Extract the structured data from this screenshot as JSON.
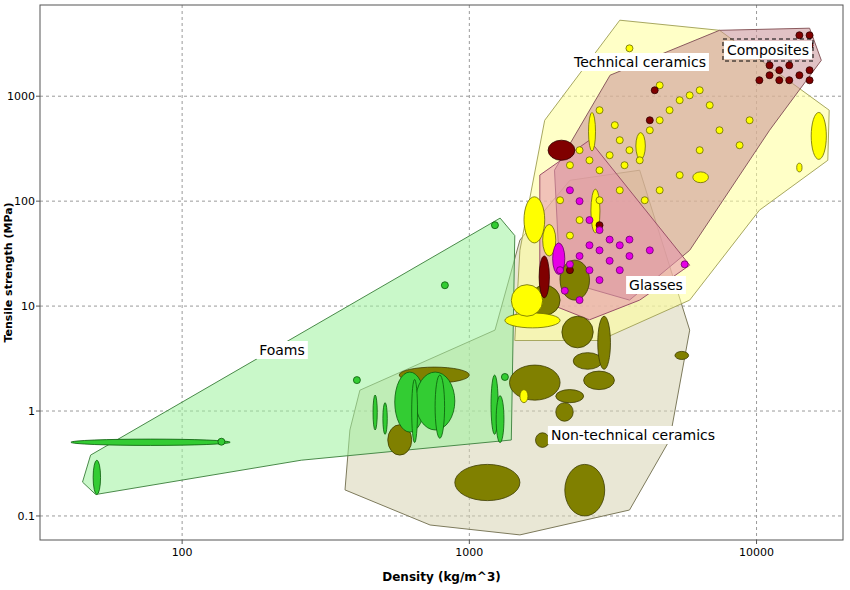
{
  "chart_data": {
    "type": "scatter",
    "x_label": "Density (kg/m^3)",
    "y_label": "Tensile strength (MPa)",
    "log": true,
    "grid": true,
    "xlim": [
      32,
      20000
    ],
    "ylim": [
      0.059,
      7400
    ],
    "xticks": [
      100,
      1000,
      10000
    ],
    "yticks": [
      0.1,
      1,
      10,
      100,
      1000
    ],
    "series": [
      {
        "name": "Non-technical ceramics",
        "color": "#808000",
        "envelope_x": [
          384,
          416,
          1228,
          1500,
          2240,
          3920,
          4790,
          5850,
          4980,
          3610,
          1500,
          730,
          369
        ],
        "envelope_y": [
          0.66,
          1.58,
          5.9,
          42.5,
          158,
          197,
          34,
          5.9,
          0.53,
          0.114,
          0.066,
          0.082,
          0.177
        ],
        "ellipses": [
          [
            520,
            630,
            0.38,
            0.74
          ],
          [
            570,
            1000,
            1.85,
            2.62
          ],
          [
            890,
            1500,
            0.14,
            0.31
          ],
          [
            2150,
            2960,
            0.1,
            0.31
          ],
          [
            1380,
            2070,
            1.27,
            2.74
          ],
          [
            1620,
            2070,
            8.2,
            15.8
          ],
          [
            2070,
            2620,
            11.4,
            27.4
          ],
          [
            2100,
            2700,
            4,
            8
          ],
          [
            2500,
            3200,
            1.6,
            2.4
          ],
          [
            2300,
            2900,
            2.5,
            3.6
          ],
          [
            2000,
            2500,
            1.2,
            1.6
          ],
          [
            2800,
            3100,
            2.5,
            8
          ],
          [
            5200,
            5800,
            3.1,
            3.7
          ],
          [
            1700,
            1900,
            0.45,
            0.62
          ],
          [
            2000,
            2300,
            0.8,
            1.2
          ]
        ]
      },
      {
        "name": "Foams",
        "color": "#33cc33",
        "envelope_x": [
          1280,
          1440,
          1400,
          260,
          50,
          45,
          48
        ],
        "envelope_y": [
          69,
          47,
          0.53,
          0.34,
          0.16,
          0.21,
          0.38
        ],
        "ellipses": [
          [
            49,
            52,
            0.16,
            0.34
          ],
          [
            41,
            147,
            0.47,
            0.54
          ],
          [
            462,
            478,
            0.66,
            1.42
          ],
          [
            500,
            518,
            0.6,
            1.2
          ],
          [
            550,
            700,
            0.63,
            2.35
          ],
          [
            650,
            890,
            0.66,
            2.35
          ],
          [
            630,
            660,
            0.5,
            2.0
          ],
          [
            760,
            820,
            0.55,
            2.2
          ],
          [
            1190,
            1260,
            0.6,
            2.2
          ],
          [
            1240,
            1320,
            0.5,
            1.4
          ]
        ],
        "x": [
          1228,
          822,
          406,
          1330,
          137
        ],
        "values": [
          59,
          15.8,
          1.97,
          2.11,
          0.51
        ]
      },
      {
        "name": "Technical ceramics",
        "color": "#ffff00",
        "envelope_x": [
          1440,
          1500,
          1830,
          3340,
          7430,
          17900,
          17700,
          10230,
          5850,
          2840
        ],
        "envelope_y": [
          4.7,
          34,
          590,
          5300,
          4250,
          736,
          245,
          82,
          11.4,
          4.7
        ],
        "ellipses": [
          [
            1330,
            2070,
            6.2,
            8.6
          ],
          [
            1400,
            1800,
            8,
            16
          ],
          [
            1550,
            1830,
            40,
            110
          ],
          [
            1800,
            2000,
            30,
            60
          ],
          [
            2650,
            2850,
            50,
            130
          ],
          [
            2600,
            2750,
            300,
            700
          ],
          [
            3800,
            4100,
            250,
            450
          ],
          [
            6000,
            6800,
            150,
            190
          ],
          [
            15500,
            17500,
            250,
            700
          ],
          [
            13800,
            14400,
            190,
            230
          ],
          [
            1500,
            1600,
            1.2,
            1.6
          ]
        ],
        "x": [
          2070,
          2240,
          2420,
          2620,
          2840,
          3080,
          3340,
          3610,
          3920,
          4250,
          4600,
          4980,
          5400,
          5850,
          6340,
          6870,
          7430,
          2840,
          3210,
          3470,
          4080,
          4600,
          5400,
          6340,
          8730,
          2240,
          2420,
          2840,
          3340,
          3610,
          4600,
          9460
        ],
        "values": [
          102,
          220,
          306,
          245,
          197,
          274,
          381,
          306,
          245,
          474,
          590,
          736,
          916,
          1020,
          1140,
          821,
          474,
          736,
          530,
          220,
          102,
          127,
          177,
          306,
          341,
          47,
          66,
          102,
          127,
          2860,
          1270,
          590
        ]
      },
      {
        "name": "Composites",
        "color": "#800000",
        "envelope_x": [
          2070,
          1980,
          3090,
          7430,
          15300,
          16800,
          11100,
          5850,
          3610
        ],
        "envelope_y": [
          17.7,
          197,
          1585,
          4250,
          4450,
          2200,
          474,
          34,
          11.4
        ],
        "ellipses": [
          [
            1880,
            2330,
            245,
            381
          ],
          [
            1750,
            1900,
            12,
            30
          ]
        ],
        "x": [
          10230,
          11100,
          12000,
          13000,
          14100,
          15300,
          14100,
          15300,
          13000,
          15300,
          14100,
          12000,
          11100,
          15300,
          4420,
          4250,
          2840,
          2240
        ],
        "values": [
          1420,
          1585,
          1770,
          1970,
          1585,
          1770,
          2460,
          3060,
          1420,
          3810,
          3810,
          1420,
          1970,
          1420,
          1140,
          590,
          59,
          22
        ]
      },
      {
        "name": "Glasses",
        "color": "#e600e6",
        "envelope_x": [
          1760,
          2620,
          5850,
          3920,
          2620,
          1760
        ],
        "envelope_y": [
          177,
          381,
          24.5,
          11.4,
          7.4,
          11.4
        ],
        "ellipses": [
          [
            1950,
            2150,
            20,
            40
          ]
        ],
        "x": [
          2240,
          2420,
          2620,
          2840,
          3080,
          2620,
          2840,
          3340,
          3080,
          3610,
          2420,
          2240,
          2070,
          2620,
          2840,
          3340,
          3610,
          4250,
          5620,
          2420,
          2150
        ],
        "values": [
          127,
          100,
          66,
          53,
          43,
          38,
          34,
          38,
          27,
          30,
          30,
          25,
          22,
          22,
          17.7,
          22,
          43,
          34,
          25,
          11.4,
          14
        ]
      }
    ]
  }
}
